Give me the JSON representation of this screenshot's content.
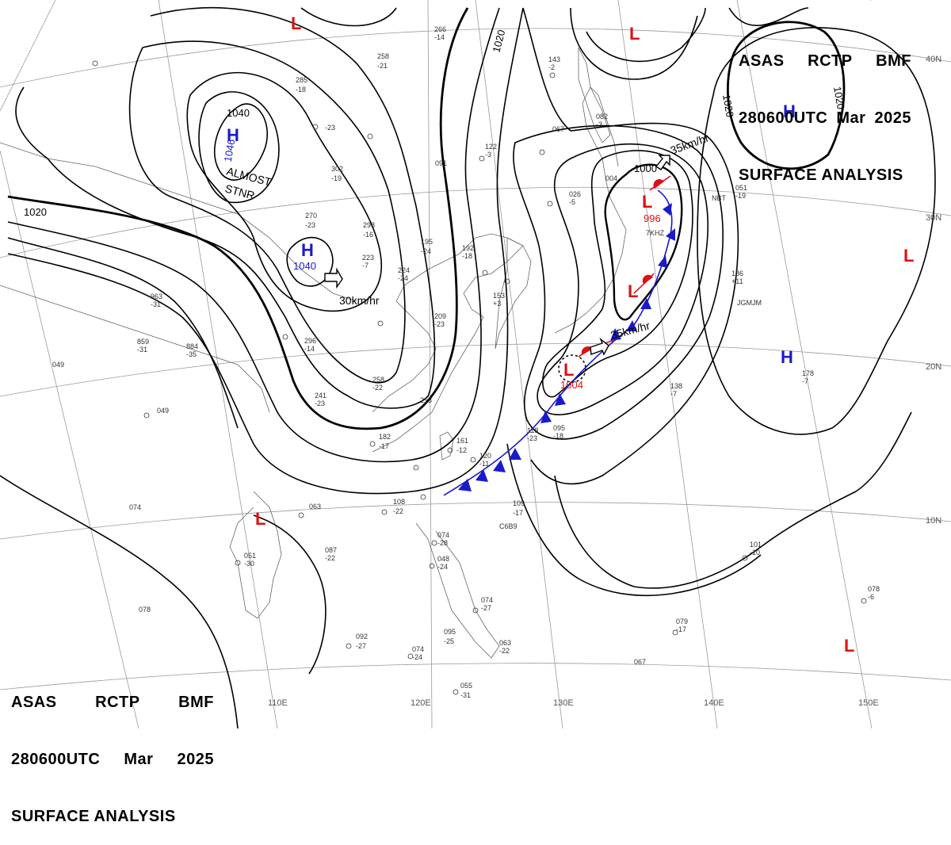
{
  "header": {
    "line1": [
      "ASAS",
      "RCTP",
      "BMF"
    ],
    "line2": [
      "280600UTC",
      "Mar",
      "2025"
    ],
    "line3": "SURFACE ANALYSIS"
  },
  "footer": {
    "line1": [
      "ASAS",
      "RCTP",
      "BMF"
    ],
    "line2": [
      "280600UTC",
      "Mar",
      "2025"
    ],
    "line3": "SURFACE ANALYSIS"
  },
  "colors": {
    "high": "#1a1acc",
    "low": "#dd1111",
    "cold_front": "#1a1acc",
    "warm_front": "#dd1111",
    "isobar": "#000000",
    "grid": "#888888"
  },
  "longitude_labels": [
    "110E",
    "120E",
    "130E",
    "140E",
    "150E"
  ],
  "latitude_labels": [
    "40N",
    "30N",
    "20N",
    "10N"
  ],
  "isobar_labels": [
    "1040",
    "1046",
    "1020",
    "1020",
    "1020",
    "1020",
    "1040",
    "1000"
  ],
  "centers": [
    {
      "type": "H",
      "pressure": "1046",
      "note": [
        "ALMOST",
        "STNR"
      ]
    },
    {
      "type": "H",
      "pressure": "1040"
    },
    {
      "type": "H",
      "pressure": ""
    },
    {
      "type": "H",
      "pressure": ""
    },
    {
      "type": "L",
      "pressure": "996"
    },
    {
      "type": "L",
      "pressure": "1004"
    },
    {
      "type": "L",
      "pressure": ""
    },
    {
      "type": "L",
      "pressure": ""
    },
    {
      "type": "L",
      "pressure": ""
    },
    {
      "type": "L",
      "pressure": ""
    },
    {
      "type": "L",
      "pressure": ""
    },
    {
      "type": "L",
      "pressure": ""
    }
  ],
  "motion_labels": [
    "30km/hr",
    "35km/hr",
    "35km/hr"
  ],
  "station_labels": [
    "266",
    "-14",
    "258",
    "-21",
    "285",
    "-18",
    "-23",
    "122",
    "-3",
    "091",
    "302",
    "-19",
    "270",
    "-23",
    "298",
    "-16",
    "223",
    "-7",
    "224",
    "-24",
    "195",
    "-24",
    "192",
    "-18",
    "209",
    "-23",
    "296",
    "-14",
    "258",
    "-22",
    "241",
    "-23",
    "213",
    "182",
    "-17",
    "161",
    "-12",
    "120",
    "-11",
    "108",
    "-22",
    "109",
    "-17",
    "074",
    "-28",
    "048",
    "-24",
    "074",
    "-27",
    "095",
    "-25",
    "092",
    "-27",
    "074",
    "-24",
    "055",
    "-31",
    "063",
    "-22",
    "067",
    "079",
    "-17",
    "101",
    "-10",
    "078",
    "-6",
    "178",
    "-7",
    "138",
    "-7",
    "095",
    "-18",
    "118",
    "-23",
    "153",
    "+3",
    "186",
    "+11",
    "051",
    "-19",
    "026",
    "-5",
    "004",
    "082",
    "-3",
    "143",
    "-2",
    "067",
    "963",
    "-31",
    "859",
    "-31",
    "884",
    "-35",
    "049",
    "049",
    "087",
    "-22",
    "051",
    "-30",
    "063",
    "078",
    "074",
    "NBT",
    "JGMJM",
    "7KHZ",
    "C6B9"
  ]
}
